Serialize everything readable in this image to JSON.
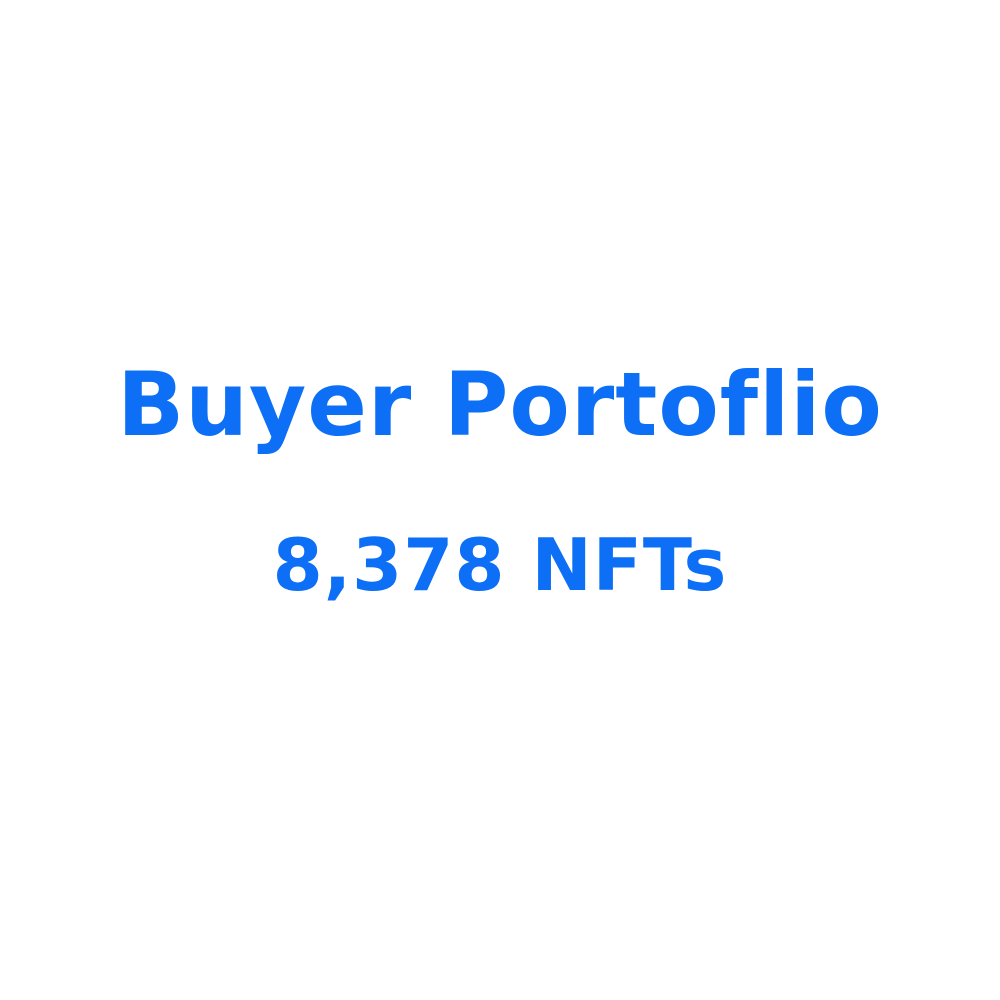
{
  "colors": {
    "background": "#ffffff",
    "text": "#0c6ff5"
  },
  "portfolio": {
    "title": "Buyer Portoflio",
    "count": "8,378 NFTs"
  }
}
